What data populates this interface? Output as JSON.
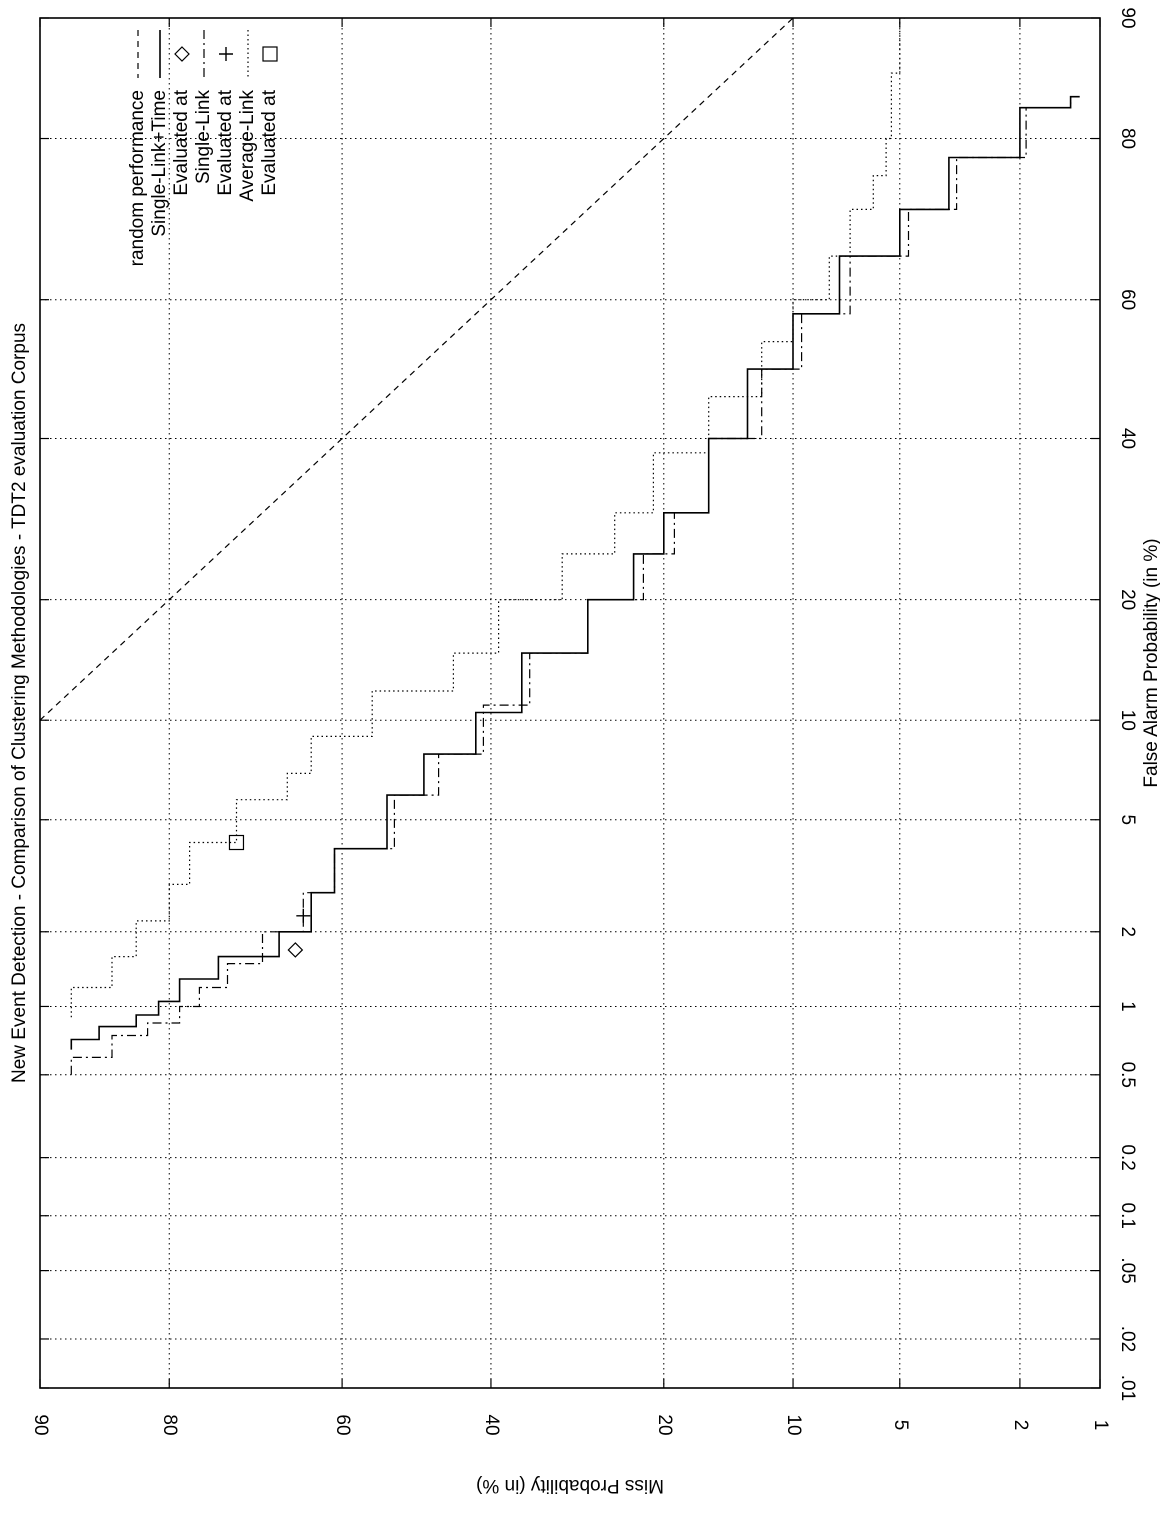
{
  "chart_data": {
    "type": "line",
    "title": "New Event Detection - Comparison of Clustering Methodologies - TDT2 evaluation Corpus",
    "xlabel": "False Alarm Probability (in %)",
    "ylabel": "Miss Probability (in %)",
    "x_scale": "normal-deviate",
    "y_scale": "normal-deviate",
    "xlim": [
      0.01,
      90
    ],
    "ylim": [
      1,
      90
    ],
    "grid": true,
    "legend_position": "top-right",
    "orientation": "rotated 90 degrees clockwise",
    "x_ticks": [
      {
        "value": 0.01,
        "label": ".01"
      },
      {
        "value": 0.02,
        "label": ".02"
      },
      {
        "value": 0.05,
        "label": ".05"
      },
      {
        "value": 0.1,
        "label": "0.1"
      },
      {
        "value": 0.2,
        "label": "0.2"
      },
      {
        "value": 0.5,
        "label": "0.5"
      },
      {
        "value": 1,
        "label": "1"
      },
      {
        "value": 2,
        "label": "2"
      },
      {
        "value": 5,
        "label": "5"
      },
      {
        "value": 10,
        "label": "10"
      },
      {
        "value": 20,
        "label": "20"
      },
      {
        "value": 40,
        "label": "40"
      },
      {
        "value": 60,
        "label": "60"
      },
      {
        "value": 80,
        "label": "80"
      },
      {
        "value": 90,
        "label": "90"
      }
    ],
    "y_ticks": [
      {
        "value": 1,
        "label": "1"
      },
      {
        "value": 2,
        "label": "2"
      },
      {
        "value": 5,
        "label": "5"
      },
      {
        "value": 10,
        "label": "10"
      },
      {
        "value": 20,
        "label": "20"
      },
      {
        "value": 40,
        "label": "40"
      },
      {
        "value": 60,
        "label": "60"
      },
      {
        "value": 80,
        "label": "80"
      },
      {
        "value": 90,
        "label": "90"
      }
    ],
    "series": [
      {
        "name": "random performance",
        "style": "dashed",
        "x": [
          10,
          20,
          40,
          60,
          80,
          90
        ],
        "y": [
          90,
          80,
          60,
          40,
          20,
          10
        ]
      },
      {
        "name": "Single-Link+Time",
        "style": "solid",
        "x": [
          0.65,
          0.72,
          0.82,
          0.92,
          1.05,
          1.3,
          1.6,
          2.0,
          2.8,
          4.0,
          6.0,
          8.0,
          10.5,
          15,
          20,
          25,
          30,
          40,
          50,
          58,
          66,
          72,
          78,
          83,
          84
        ],
        "y": [
          88,
          86,
          83,
          81,
          79,
          75,
          68,
          64,
          61,
          54,
          49,
          42,
          36,
          28,
          23,
          20,
          16,
          13,
          10,
          7.5,
          5,
          3.5,
          2,
          1.3,
          1.2
        ]
      },
      {
        "name": "Single-Link",
        "style": "dash-dot",
        "x": [
          0.5,
          0.6,
          0.75,
          0.85,
          1.0,
          1.2,
          1.5,
          2.0,
          2.8,
          4.0,
          6.0,
          8.0,
          11,
          15,
          20,
          25,
          30,
          40,
          50,
          58,
          66,
          72,
          78,
          83,
          84
        ],
        "y": [
          88,
          85,
          82,
          79,
          77,
          74,
          70,
          65,
          61,
          53,
          47,
          41,
          35,
          28,
          22,
          19,
          16,
          12,
          9.5,
          7,
          4.7,
          3.3,
          1.9,
          1.3,
          1.2
        ]
      },
      {
        "name": "Average-Link",
        "style": "dotted",
        "x": [
          0.9,
          1.2,
          1.6,
          2.2,
          3.0,
          4.2,
          5.8,
          7.0,
          9.0,
          12,
          15,
          20,
          25,
          30,
          38,
          46,
          54,
          60,
          66,
          72,
          76,
          80,
          86,
          90
        ],
        "y": [
          88,
          85,
          83,
          80,
          78,
          73,
          67,
          64,
          56,
          45,
          39,
          31,
          25,
          21,
          16,
          12,
          10,
          8,
          7,
          6,
          5.5,
          5.3,
          5,
          4.8
        ]
      }
    ],
    "markers": [
      {
        "name": "Evaluated at",
        "symbol": "diamond",
        "series": "Single-Link+Time",
        "x": 1.7,
        "y": 66
      },
      {
        "name": "Evaluated at",
        "symbol": "plus",
        "series": "Single-Link",
        "x": 2.3,
        "y": 65
      },
      {
        "name": "Evaluated at",
        "symbol": "square",
        "series": "Average-Link",
        "x": 4.2,
        "y": 73
      }
    ],
    "legend": [
      {
        "label": "random performance",
        "style": "dashed"
      },
      {
        "label": "Single-Link+Time",
        "style": "solid"
      },
      {
        "label": "Evaluated at",
        "symbol": "diamond"
      },
      {
        "label": "Single-Link",
        "style": "dash-dot"
      },
      {
        "label": "Evaluated at",
        "symbol": "plus"
      },
      {
        "label": "Average-Link",
        "style": "dotted"
      },
      {
        "label": "Evaluated at",
        "symbol": "square"
      }
    ]
  }
}
